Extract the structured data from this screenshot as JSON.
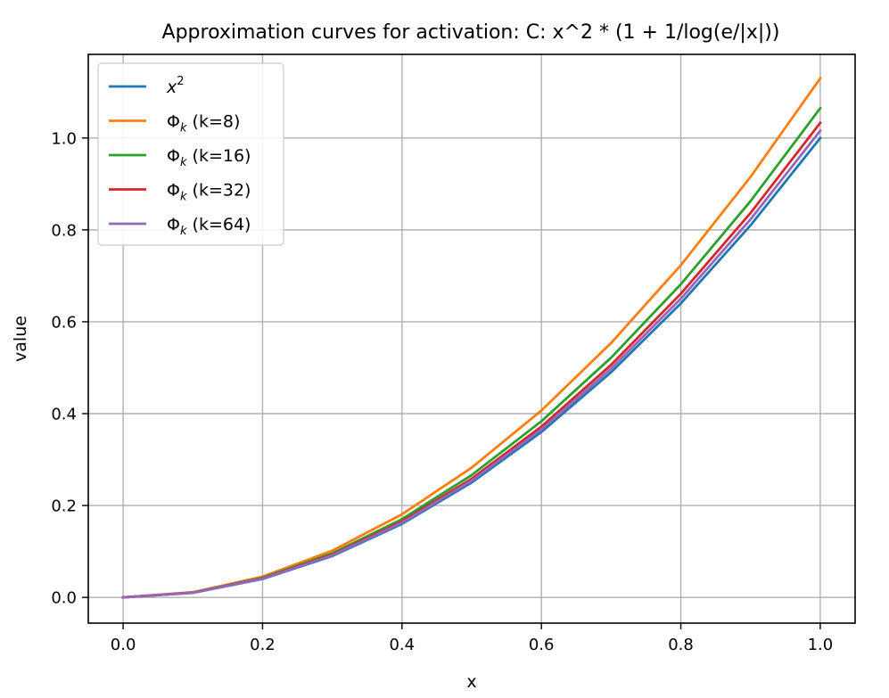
{
  "chart_data": {
    "type": "line",
    "title": "Approximation curves for activation: C: x^2 * (1 + 1/log(e/|x|))",
    "xlabel": "x",
    "ylabel": "value",
    "xlim": [
      -0.05,
      1.05
    ],
    "ylim": [
      -0.056,
      1.182
    ],
    "xticks": [
      0.0,
      0.2,
      0.4,
      0.6,
      0.8,
      1.0
    ],
    "xtick_labels": [
      "0.0",
      "0.2",
      "0.4",
      "0.6",
      "0.8",
      "1.0"
    ],
    "yticks": [
      0.0,
      0.2,
      0.4,
      0.6,
      0.8,
      1.0
    ],
    "ytick_labels": [
      "0.0",
      "0.2",
      "0.4",
      "0.6",
      "0.8",
      "1.0"
    ],
    "grid": true,
    "legend_position": "upper-left",
    "x": [
      0.0,
      0.1,
      0.2,
      0.3,
      0.4,
      0.5,
      0.6,
      0.7,
      0.8,
      0.9,
      1.0
    ],
    "series": [
      {
        "name": "x^2",
        "label_main": "x",
        "label_sup": "2",
        "label_rest": "",
        "color": "#1f77b4",
        "values": [
          0.0,
          0.01,
          0.04,
          0.09,
          0.16,
          0.25,
          0.36,
          0.49,
          0.64,
          0.81,
          1.0
        ]
      },
      {
        "name": "Phi_k (k=8)",
        "label_main": "Φ",
        "label_sub": "k",
        "label_rest": " (k=8)",
        "color": "#ff7f0e",
        "values": [
          0.0,
          0.0113,
          0.0452,
          0.1017,
          0.1808,
          0.2825,
          0.4068,
          0.5537,
          0.7232,
          0.9153,
          1.13
        ]
      },
      {
        "name": "Phi_k (k=16)",
        "label_main": "Φ",
        "label_sub": "k",
        "label_rest": " (k=16)",
        "color": "#2ca02c",
        "values": [
          0.0,
          0.01065,
          0.0426,
          0.09585,
          0.1704,
          0.26625,
          0.3834,
          0.52185,
          0.6816,
          0.86265,
          1.065
        ]
      },
      {
        "name": "Phi_k (k=32)",
        "label_main": "Φ",
        "label_sub": "k",
        "label_rest": " (k=32)",
        "color": "#d62728",
        "values": [
          0.0,
          0.01033,
          0.04132,
          0.09297,
          0.16528,
          0.25825,
          0.37188,
          0.50617,
          0.66112,
          0.83673,
          1.033
        ]
      },
      {
        "name": "Phi_k (k=64)",
        "label_main": "Φ",
        "label_sub": "k",
        "label_rest": " (k=64)",
        "color": "#9467bd",
        "values": [
          0.0,
          0.01016,
          0.04064,
          0.09144,
          0.16256,
          0.254,
          0.36576,
          0.49784,
          0.65024,
          0.82296,
          1.016
        ]
      }
    ]
  }
}
